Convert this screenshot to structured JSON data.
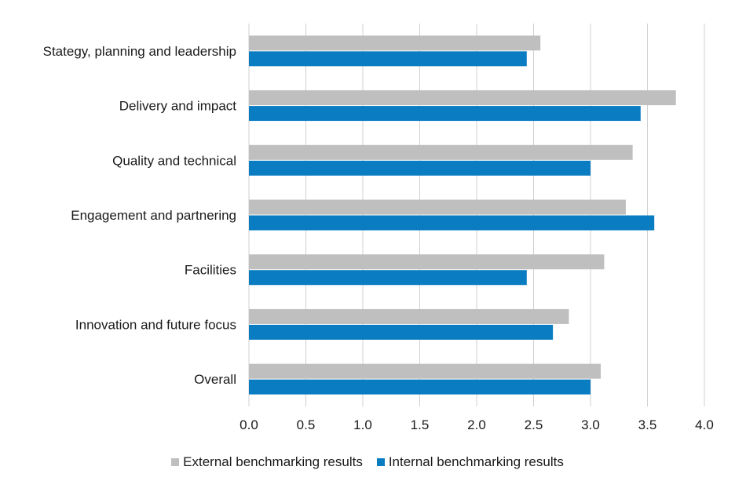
{
  "chart_data": {
    "type": "bar",
    "orientation": "horizontal",
    "categories": [
      "Stategy, planning and leadership",
      "Delivery and impact",
      "Quality and technical",
      "Engagement and partnering",
      "Facilities",
      "Innovation and future focus",
      "Overall"
    ],
    "series": [
      {
        "name": "External benchmarking results",
        "color": "#bfbfbf",
        "values": [
          2.56,
          3.75,
          3.37,
          3.31,
          3.12,
          2.81,
          3.09
        ]
      },
      {
        "name": "Internal benchmarking results",
        "color": "#0a7dc2",
        "values": [
          2.44,
          3.44,
          3.0,
          3.56,
          2.44,
          2.67,
          3.0
        ]
      }
    ],
    "xlim": [
      0,
      4
    ],
    "xticks": [
      "0.0",
      "0.5",
      "1.0",
      "1.5",
      "2.0",
      "2.5",
      "3.0",
      "3.5",
      "4.0"
    ],
    "grid": true,
    "legend_position": "bottom"
  }
}
